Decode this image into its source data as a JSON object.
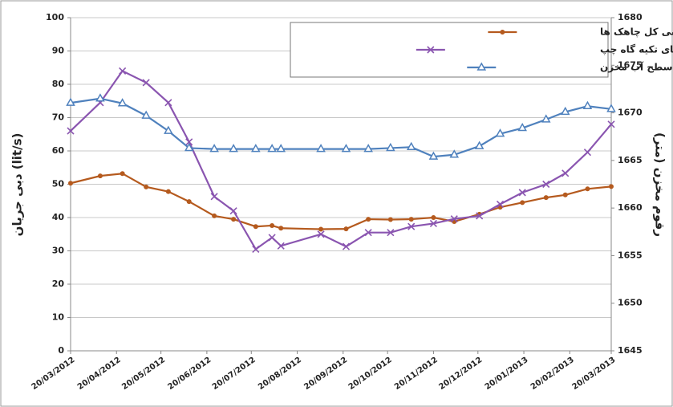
{
  "chart_data": {
    "type": "line",
    "y_label": "دبی جریان (lit/s)",
    "y2_label": "رقوم مخزن (متر)",
    "x": [
      "2012-03-20",
      "2012-04-09",
      "2012-04-24",
      "2012-05-10",
      "2012-05-25",
      "2012-06-08",
      "2012-06-25",
      "2012-07-08",
      "2012-07-23",
      "2012-08-03",
      "2012-08-09",
      "2012-09-05",
      "2012-09-22",
      "2012-10-07",
      "2012-10-22",
      "2012-11-05",
      "2012-11-20",
      "2012-12-04",
      "2012-12-21",
      "2013-01-04",
      "2013-01-19",
      "2013-02-04",
      "2013-02-17",
      "2013-03-04",
      "2013-03-20"
    ],
    "series": [
      {
        "name": "دبی کل چاهک ها",
        "color": "#b55a1e",
        "marker": "circle",
        "values": [
          50.3,
          52.5,
          53.2,
          49.2,
          47.8,
          44.8,
          40.5,
          39.5,
          37.3,
          37.6,
          36.8,
          36.5,
          36.6,
          39.5,
          39.4,
          39.5,
          40,
          38.8,
          41,
          43.1,
          44.5,
          46,
          46.8,
          48.6,
          49.3
        ]
      },
      {
        "name": "دبی کل چشمه های تکیه گاه چپ",
        "color": "#8a55b0",
        "marker": "x",
        "values": [
          66,
          74.5,
          84,
          80.5,
          74.5,
          62.7,
          46.3,
          42,
          30.5,
          34,
          31.5,
          35,
          31.3,
          35.5,
          35.5,
          37.3,
          38.2,
          39.6,
          40.5,
          44,
          47.5,
          50,
          53.3,
          59.6,
          68
        ]
      },
      {
        "name": "رقوم سطح آب مخزن",
        "color": "#4f81bd",
        "marker": "triangle",
        "axis": "y2",
        "values": [
          1671.05,
          1671.5,
          1671,
          1669.7,
          1668.1,
          1666.3,
          1666.2,
          1666.2,
          1666.2,
          1666.2,
          1666.2,
          1666.2,
          1666.2,
          1666.2,
          1666.3,
          1666.4,
          1665.4,
          1665.6,
          1666.5,
          1667.8,
          1668.4,
          1669.3,
          1670.1,
          1670.7,
          1670.4
        ]
      }
    ],
    "xlim": [
      "2012-03-20",
      "2013-03-20"
    ],
    "xticks": [
      {
        "value": "2012-03-20",
        "label": "20/03/2012"
      },
      {
        "value": "2012-04-20",
        "label": "20/04/2012"
      },
      {
        "value": "2012-05-20",
        "label": "20/05/2012"
      },
      {
        "value": "2012-06-20",
        "label": "20/06/2012"
      },
      {
        "value": "2012-07-20",
        "label": "20/07/2012"
      },
      {
        "value": "2012-08-20",
        "label": "20/08/2012"
      },
      {
        "value": "2012-09-20",
        "label": "20/09/2012"
      },
      {
        "value": "2012-10-20",
        "label": "20/10/2012"
      },
      {
        "value": "2012-11-20",
        "label": "20/11/2012"
      },
      {
        "value": "2012-12-20",
        "label": "20/12/2012"
      },
      {
        "value": "2013-01-20",
        "label": "20/01/2013"
      },
      {
        "value": "2013-02-20",
        "label": "20/02/2013"
      },
      {
        "value": "2013-03-20",
        "label": "20/03/2013"
      }
    ],
    "ylim": [
      0,
      100
    ],
    "yticks": [
      0,
      10,
      20,
      30,
      40,
      50,
      60,
      70,
      80,
      90,
      100
    ],
    "y2lim": [
      1645,
      1680
    ],
    "y2ticks": [
      1645,
      1650,
      1655,
      1660,
      1665,
      1670,
      1675,
      1680
    ],
    "grid": true,
    "legend": "top-right"
  }
}
